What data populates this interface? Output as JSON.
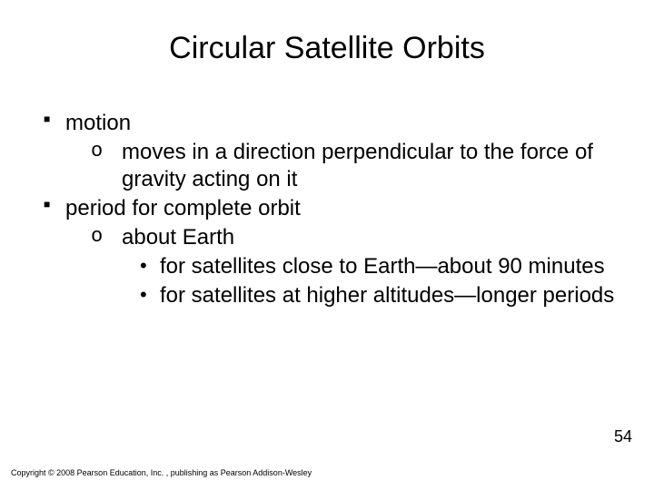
{
  "title": "Circular Satellite Orbits",
  "bullets": {
    "b1": "motion",
    "b1_1": "moves in a direction perpendicular to the force of gravity acting on it",
    "b2": "period for complete orbit",
    "b2_1": "about Earth",
    "b2_1_1": "for satellites close to Earth—about 90 minutes",
    "b2_1_2": "for satellites at higher altitudes—longer periods"
  },
  "pageNumber": "54",
  "copyright": "Copyright © 2008 Pearson Education, Inc. , publishing as Pearson Addison-Wesley",
  "style": {
    "background": "#ffffff",
    "text_color": "#000000",
    "title_fontsize": 34,
    "body_fontsize": 24,
    "page_fontsize": 18,
    "copyright_fontsize": 9
  }
}
